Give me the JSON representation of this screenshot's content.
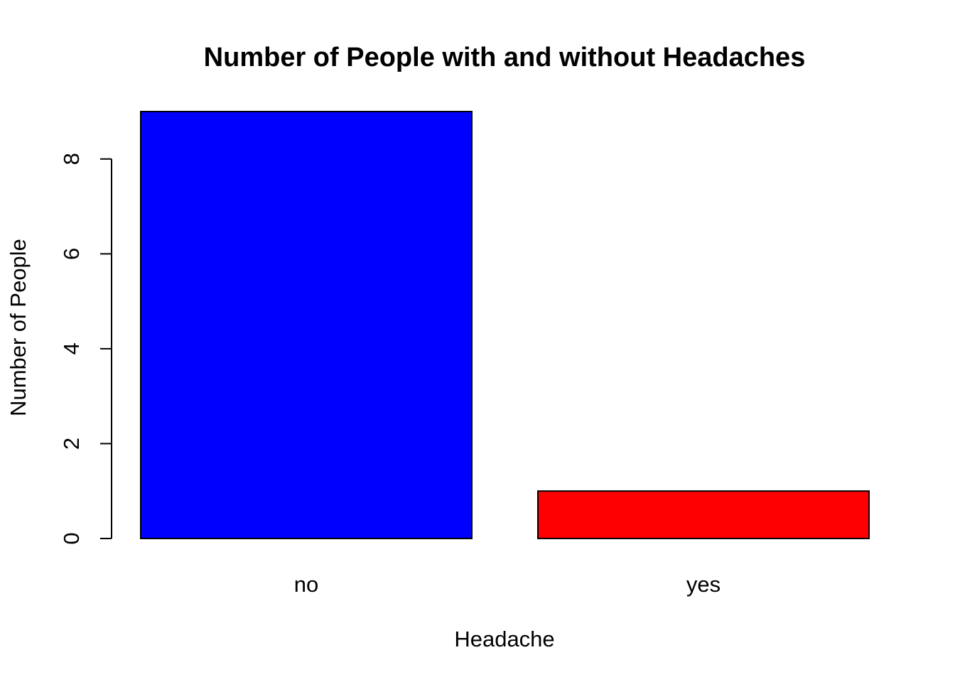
{
  "chart_data": {
    "type": "bar",
    "title": "Number of People with and without Headaches",
    "xlabel": "Headache",
    "ylabel": "Number of People",
    "categories": [
      "no",
      "yes"
    ],
    "values": [
      9,
      1
    ],
    "colors": [
      "#0000ff",
      "#ff0000"
    ],
    "border_color": "#000000",
    "ylim": [
      0,
      9
    ],
    "yticks": [
      0,
      2,
      4,
      6,
      8
    ],
    "grid": false,
    "legend": "none"
  }
}
